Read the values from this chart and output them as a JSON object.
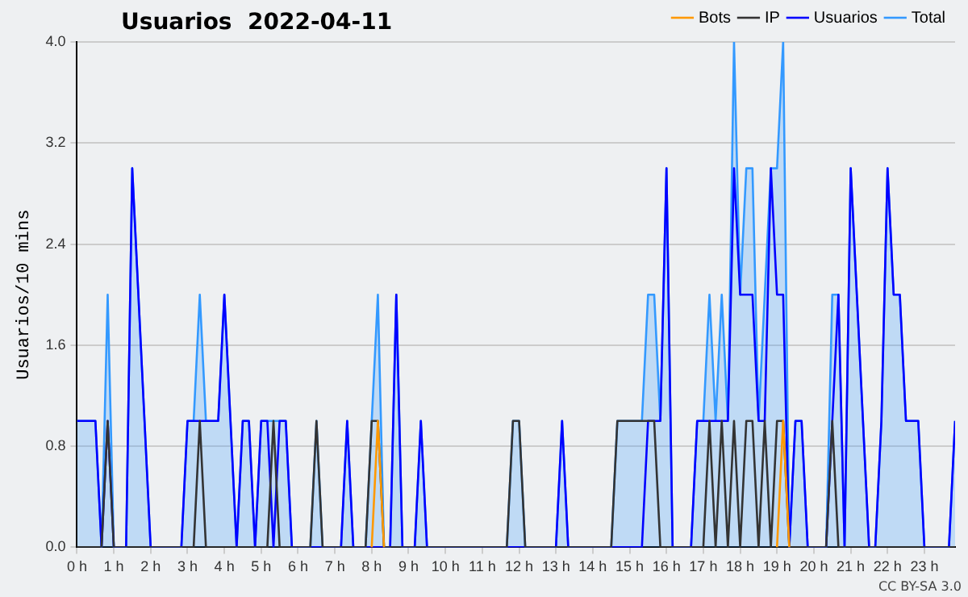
{
  "chart_data": {
    "type": "line",
    "title": "Usuarios  2022-04-11",
    "ylabel": "Usuarios/10 mins",
    "x": [
      0,
      0.1667,
      0.3333,
      0.5,
      0.6667,
      0.8333,
      1,
      1.1667,
      1.3333,
      1.5,
      1.6667,
      1.8333,
      2,
      2.1667,
      2.3333,
      2.5,
      2.6667,
      2.8333,
      3,
      3.1667,
      3.3333,
      3.5,
      3.6667,
      3.8333,
      4,
      4.1667,
      4.3333,
      4.5,
      4.6667,
      4.8333,
      5,
      5.1667,
      5.3333,
      5.5,
      5.6667,
      5.8333,
      6,
      6.1667,
      6.3333,
      6.5,
      6.6667,
      6.8333,
      7,
      7.1667,
      7.3333,
      7.5,
      7.6667,
      7.8333,
      8,
      8.1667,
      8.3333,
      8.5,
      8.6667,
      8.8333,
      9,
      9.1667,
      9.3333,
      9.5,
      9.6667,
      9.8333,
      10,
      10.1667,
      10.3333,
      10.5,
      10.6667,
      10.8333,
      11,
      11.1667,
      11.3333,
      11.5,
      11.6667,
      11.8333,
      12,
      12.1667,
      12.3333,
      12.5,
      12.6667,
      12.8333,
      13,
      13.1667,
      13.3333,
      13.5,
      13.6667,
      13.8333,
      14,
      14.1667,
      14.3333,
      14.5,
      14.6667,
      14.8333,
      15,
      15.1667,
      15.3333,
      15.5,
      15.6667,
      15.8333,
      16,
      16.1667,
      16.3333,
      16.5,
      16.6667,
      16.8333,
      17,
      17.1667,
      17.3333,
      17.5,
      17.6667,
      17.8333,
      18,
      18.1667,
      18.3333,
      18.5,
      18.6667,
      18.8333,
      19,
      19.1667,
      19.3333,
      19.5,
      19.6667,
      19.8333,
      20,
      20.1667,
      20.3333,
      20.5,
      20.6667,
      20.8333,
      21,
      21.1667,
      21.3333,
      21.5,
      21.6667,
      21.8333,
      22,
      22.1667,
      22.3333,
      22.5,
      22.6667,
      22.8333,
      23,
      23.1667,
      23.3333,
      23.5,
      23.6667,
      23.8333
    ],
    "series": [
      {
        "name": "Total",
        "type": "area",
        "color": "#3399ff",
        "values": [
          1,
          1,
          1,
          1,
          0,
          2,
          0,
          0,
          0,
          3,
          2,
          1,
          0,
          0,
          0,
          0,
          0,
          0,
          1,
          1,
          2,
          1,
          1,
          1,
          2,
          1,
          0,
          1,
          1,
          0,
          1,
          1,
          1,
          1,
          1,
          0,
          0,
          0,
          0,
          1,
          0,
          0,
          0,
          0,
          1,
          0,
          0,
          0,
          1,
          2,
          0,
          0,
          2,
          0,
          0,
          0,
          1,
          0,
          0,
          0,
          0,
          0,
          0,
          0,
          0,
          0,
          0,
          0,
          0,
          0,
          0,
          1,
          1,
          0,
          0,
          0,
          0,
          0,
          0,
          1,
          0,
          0,
          0,
          0,
          0,
          0,
          0,
          0,
          1,
          1,
          1,
          1,
          1,
          2,
          2,
          1,
          3,
          0,
          0,
          0,
          0,
          1,
          1,
          2,
          1,
          2,
          1,
          4,
          2,
          3,
          3,
          1,
          2,
          3,
          3,
          4,
          0,
          1,
          1,
          0,
          0,
          0,
          0,
          2,
          2,
          0,
          3,
          2,
          1,
          0,
          0,
          1,
          3,
          2,
          2,
          1,
          1,
          1,
          0,
          0,
          0,
          0,
          0,
          1
        ]
      },
      {
        "name": "Usuarios",
        "type": "line",
        "color": "#0000ff",
        "values": [
          1,
          1,
          1,
          1,
          0,
          1,
          0,
          0,
          0,
          3,
          2,
          1,
          0,
          0,
          0,
          0,
          0,
          0,
          1,
          1,
          1,
          1,
          1,
          1,
          2,
          1,
          0,
          1,
          1,
          0,
          1,
          1,
          0,
          1,
          1,
          0,
          0,
          0,
          0,
          0,
          0,
          0,
          0,
          0,
          1,
          0,
          0,
          0,
          0,
          0,
          0,
          0,
          2,
          0,
          0,
          0,
          1,
          0,
          0,
          0,
          0,
          0,
          0,
          0,
          0,
          0,
          0,
          0,
          0,
          0,
          0,
          0,
          0,
          0,
          0,
          0,
          0,
          0,
          0,
          1,
          0,
          0,
          0,
          0,
          0,
          0,
          0,
          0,
          0,
          0,
          0,
          0,
          0,
          1,
          1,
          1,
          3,
          0,
          0,
          0,
          0,
          1,
          1,
          1,
          1,
          1,
          1,
          3,
          2,
          2,
          2,
          1,
          1,
          3,
          2,
          2,
          0,
          1,
          1,
          0,
          0,
          0,
          0,
          1,
          2,
          0,
          3,
          2,
          1,
          0,
          0,
          1,
          3,
          2,
          2,
          1,
          1,
          1,
          0,
          0,
          0,
          0,
          0,
          1
        ]
      },
      {
        "name": "IP",
        "type": "line",
        "color": "#333333",
        "values": [
          0,
          0,
          0,
          0,
          0,
          1,
          0,
          0,
          0,
          0,
          0,
          0,
          0,
          0,
          0,
          0,
          0,
          0,
          0,
          0,
          1,
          0,
          0,
          0,
          0,
          0,
          0,
          0,
          0,
          0,
          0,
          0,
          1,
          0,
          0,
          0,
          0,
          0,
          0,
          1,
          0,
          0,
          0,
          0,
          0,
          0,
          0,
          0,
          1,
          1,
          0,
          0,
          0,
          0,
          0,
          0,
          0,
          0,
          0,
          0,
          0,
          0,
          0,
          0,
          0,
          0,
          0,
          0,
          0,
          0,
          0,
          1,
          1,
          0,
          0,
          0,
          0,
          0,
          0,
          0,
          0,
          0,
          0,
          0,
          0,
          0,
          0,
          0,
          1,
          1,
          1,
          1,
          1,
          1,
          1,
          0,
          0,
          0,
          0,
          0,
          0,
          0,
          0,
          1,
          0,
          1,
          0,
          1,
          0,
          1,
          1,
          0,
          1,
          0,
          1,
          1,
          0,
          0,
          0,
          0,
          0,
          0,
          0,
          1,
          0,
          0,
          0,
          0,
          0,
          0,
          0,
          0,
          0,
          0,
          0,
          0,
          0,
          0,
          0,
          0,
          0,
          0,
          0,
          0
        ]
      },
      {
        "name": "Bots",
        "type": "line",
        "color": "#ff9900",
        "values": [
          null,
          null,
          null,
          null,
          null,
          null,
          null,
          null,
          null,
          null,
          null,
          null,
          null,
          null,
          null,
          null,
          null,
          null,
          null,
          null,
          null,
          null,
          null,
          null,
          null,
          null,
          null,
          null,
          null,
          null,
          null,
          null,
          null,
          null,
          null,
          null,
          null,
          null,
          null,
          null,
          null,
          null,
          null,
          null,
          null,
          null,
          null,
          null,
          0,
          1,
          0,
          null,
          null,
          null,
          null,
          null,
          null,
          null,
          null,
          null,
          null,
          null,
          null,
          null,
          null,
          null,
          null,
          null,
          null,
          null,
          null,
          null,
          null,
          null,
          null,
          null,
          null,
          null,
          null,
          null,
          null,
          null,
          null,
          null,
          null,
          null,
          null,
          null,
          null,
          null,
          null,
          null,
          null,
          null,
          null,
          null,
          null,
          null,
          null,
          null,
          null,
          null,
          null,
          null,
          null,
          null,
          null,
          null,
          null,
          null,
          null,
          null,
          null,
          null,
          0,
          1,
          0,
          null,
          null,
          null,
          null,
          null,
          null,
          null,
          null,
          null,
          null,
          null,
          null,
          null,
          null,
          null,
          null,
          null,
          null,
          null,
          null,
          null,
          null,
          null,
          null,
          null,
          null,
          null
        ]
      }
    ],
    "xlim": [
      0,
      23.8333
    ],
    "xticks": [
      {
        "value": 0,
        "label": "0 h"
      },
      {
        "value": 1,
        "label": "1 h"
      },
      {
        "value": 2,
        "label": "2 h"
      },
      {
        "value": 3,
        "label": "3 h"
      },
      {
        "value": 4,
        "label": "4 h"
      },
      {
        "value": 5,
        "label": "5 h"
      },
      {
        "value": 6,
        "label": "6 h"
      },
      {
        "value": 7,
        "label": "7 h"
      },
      {
        "value": 8,
        "label": "8 h"
      },
      {
        "value": 9,
        "label": "9 h"
      },
      {
        "value": 10,
        "label": "10 h"
      },
      {
        "value": 11,
        "label": "11 h"
      },
      {
        "value": 12,
        "label": "12 h"
      },
      {
        "value": 13,
        "label": "13 h"
      },
      {
        "value": 14,
        "label": "14 h"
      },
      {
        "value": 15,
        "label": "15 h"
      },
      {
        "value": 16,
        "label": "16 h"
      },
      {
        "value": 17,
        "label": "17 h"
      },
      {
        "value": 18,
        "label": "18 h"
      },
      {
        "value": 19,
        "label": "19 h"
      },
      {
        "value": 20,
        "label": "20 h"
      },
      {
        "value": 21,
        "label": "21 h"
      },
      {
        "value": 22,
        "label": "22 h"
      },
      {
        "value": 23,
        "label": "23 h"
      }
    ],
    "ylim": [
      0,
      4
    ],
    "yticks": [
      {
        "value": 0,
        "label": "0.0"
      },
      0.8,
      1.6,
      2.4,
      3.2,
      {
        "value": 4,
        "label": "4.0"
      }
    ],
    "grid": "y",
    "legend": "top right",
    "marker": "none",
    "line_style": "solid",
    "annotations": [
      "CC BY-SA 3.0"
    ]
  }
}
